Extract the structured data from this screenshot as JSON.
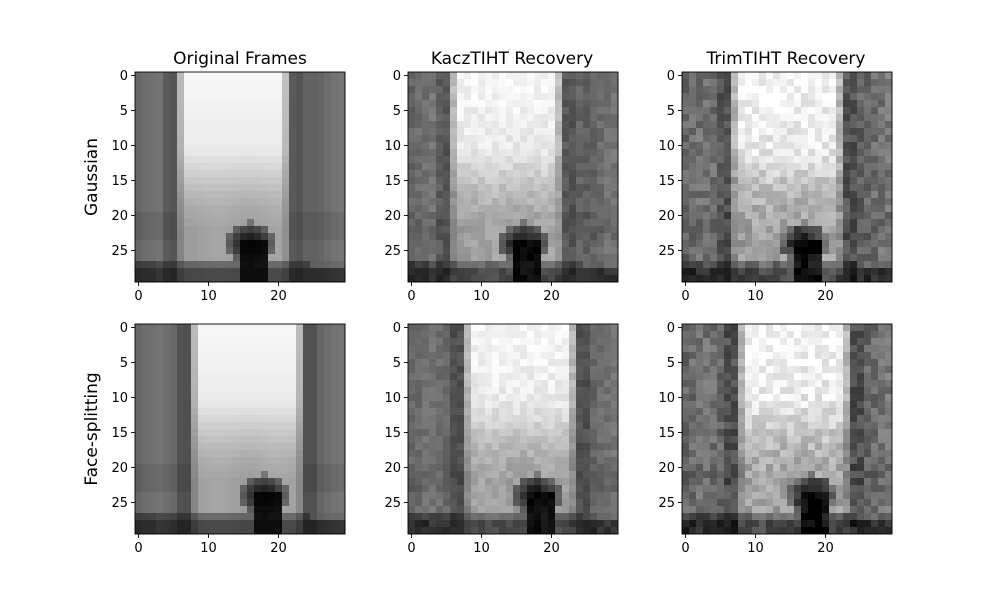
{
  "chart_data": {
    "type": "heatmap",
    "colormap": "gray",
    "image_size": [
      30,
      30
    ],
    "column_titles": [
      "Original Frames",
      "KaczTIHT Recovery",
      "TrimTIHT Recovery"
    ],
    "row_labels": [
      "Gaussian",
      "Face-splitting"
    ],
    "x_ticks": [
      0,
      10,
      20
    ],
    "y_ticks": [
      0,
      5,
      10,
      15,
      20,
      25
    ],
    "x_range": [
      -0.5,
      29.5
    ],
    "y_range": [
      29.5,
      -0.5
    ],
    "grid": false,
    "panels": [
      {
        "row": 0,
        "col": 0,
        "bright_start": 5.5,
        "bright_end": 21.5,
        "noise": 0.0,
        "seed": 11
      },
      {
        "row": 0,
        "col": 1,
        "bright_start": 5.5,
        "bright_end": 21.5,
        "noise": 0.05,
        "seed": 23
      },
      {
        "row": 0,
        "col": 2,
        "bright_start": 6.5,
        "bright_end": 22.5,
        "noise": 0.09,
        "seed": 37
      },
      {
        "row": 1,
        "col": 0,
        "bright_start": 7.5,
        "bright_end": 23.5,
        "noise": 0.0,
        "seed": 41
      },
      {
        "row": 1,
        "col": 1,
        "bright_start": 7.5,
        "bright_end": 23.5,
        "noise": 0.05,
        "seed": 53
      },
      {
        "row": 1,
        "col": 2,
        "bright_start": 7.5,
        "bright_end": 23.5,
        "noise": 0.09,
        "seed": 67
      }
    ]
  }
}
